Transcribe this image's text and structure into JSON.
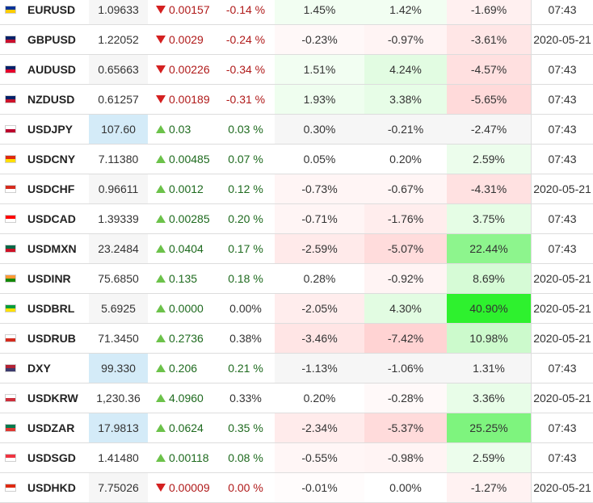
{
  "colors": {
    "down_text": "#b01a1a",
    "up_text": "#1e6a1e",
    "down_arrow": "#d42020",
    "up_arrow": "#6cc24a",
    "price_highlight": "#d4ebf8"
  },
  "rows": [
    {
      "flag": "eu-flag-icon",
      "flag_colors": [
        "#003399",
        "#ffcc00"
      ],
      "symbol": "EURUSD",
      "price": "1.09633",
      "price_hl": false,
      "dir": "down",
      "change": "0.00157",
      "change_pct": "-0.14 %",
      "pct_color": "down",
      "p1": "1.45%",
      "p1_bg": "#f2fef2",
      "p2": "1.42%",
      "p2_bg": "#f2fef2",
      "p3": "-1.69%",
      "p3_bg": "#fff0f0",
      "time": "07:43"
    },
    {
      "flag": "uk-flag-icon",
      "flag_colors": [
        "#012169",
        "#c8102e"
      ],
      "symbol": "GBPUSD",
      "price": "1.22052",
      "price_hl": false,
      "dir": "down",
      "change": "0.0029",
      "change_pct": "-0.24 %",
      "pct_color": "down",
      "p1": "-0.23%",
      "p1_bg": "#fff8f8",
      "p2": "-0.97%",
      "p2_bg": "#fff4f4",
      "p3": "-3.61%",
      "p3_bg": "#ffe6e6",
      "time": "2020-05-21"
    },
    {
      "flag": "au-flag-icon",
      "flag_colors": [
        "#012169",
        "#e4002b"
      ],
      "symbol": "AUDUSD",
      "price": "0.65663",
      "price_hl": false,
      "dir": "down",
      "change": "0.00226",
      "change_pct": "-0.34 %",
      "pct_color": "down",
      "p1": "1.51%",
      "p1_bg": "#f2fef2",
      "p2": "4.24%",
      "p2_bg": "#e2fce2",
      "p3": "-4.57%",
      "p3_bg": "#ffe0e0",
      "time": "07:43"
    },
    {
      "flag": "nz-flag-icon",
      "flag_colors": [
        "#012169",
        "#cc142b"
      ],
      "symbol": "NZDUSD",
      "price": "0.61257",
      "price_hl": false,
      "dir": "down",
      "change": "0.00189",
      "change_pct": "-0.31 %",
      "pct_color": "down",
      "p1": "1.93%",
      "p1_bg": "#effeef",
      "p2": "3.38%",
      "p2_bg": "#e7fde7",
      "p3": "-5.65%",
      "p3_bg": "#ffdada",
      "time": "07:43"
    },
    {
      "flag": "jp-flag-icon",
      "flag_colors": [
        "#ffffff",
        "#bc002d"
      ],
      "symbol": "USDJPY",
      "price": "107.60",
      "price_hl": true,
      "dir": "up",
      "change": "0.03",
      "change_pct": "0.03 %",
      "pct_color": "up",
      "p1": "0.30%",
      "p1_bg": "#f6f6f6",
      "p2": "-0.21%",
      "p2_bg": "#f6f6f6",
      "p3": "-2.47%",
      "p3_bg": "#f6f6f6",
      "time": "07:43"
    },
    {
      "flag": "cn-flag-icon",
      "flag_colors": [
        "#de2910",
        "#ffde00"
      ],
      "symbol": "USDCNY",
      "price": "7.11380",
      "price_hl": false,
      "dir": "up",
      "change": "0.00485",
      "change_pct": "0.07 %",
      "pct_color": "up",
      "p1": "0.05%",
      "p1_bg": "#ffffff",
      "p2": "0.20%",
      "p2_bg": "#ffffff",
      "p3": "2.59%",
      "p3_bg": "#ecfdec",
      "time": "07:43"
    },
    {
      "flag": "ch-flag-icon",
      "flag_colors": [
        "#d52b1e",
        "#ffffff"
      ],
      "symbol": "USDCHF",
      "price": "0.96611",
      "price_hl": false,
      "dir": "up",
      "change": "0.0012",
      "change_pct": "0.12 %",
      "pct_color": "up",
      "p1": "-0.73%",
      "p1_bg": "#fff5f5",
      "p2": "-0.67%",
      "p2_bg": "#fff5f5",
      "p3": "-4.31%",
      "p3_bg": "#ffe1e1",
      "time": "2020-05-21"
    },
    {
      "flag": "ca-flag-icon",
      "flag_colors": [
        "#ff0000",
        "#ffffff"
      ],
      "symbol": "USDCAD",
      "price": "1.39339",
      "price_hl": false,
      "dir": "up",
      "change": "0.00285",
      "change_pct": "0.20 %",
      "pct_color": "up",
      "p1": "-0.71%",
      "p1_bg": "#fff5f5",
      "p2": "-1.76%",
      "p2_bg": "#ffeded",
      "p3": "3.75%",
      "p3_bg": "#e5fde5",
      "time": "07:43"
    },
    {
      "flag": "mx-flag-icon",
      "flag_colors": [
        "#006847",
        "#ce1126"
      ],
      "symbol": "USDMXN",
      "price": "23.2484",
      "price_hl": false,
      "dir": "up",
      "change": "0.0404",
      "change_pct": "0.17 %",
      "pct_color": "up",
      "p1": "-2.59%",
      "p1_bg": "#ffeaea",
      "p2": "-5.07%",
      "p2_bg": "#ffdcdc",
      "p3": "22.44%",
      "p3_bg": "#8df58d",
      "time": "07:43"
    },
    {
      "flag": "in-flag-icon",
      "flag_colors": [
        "#ff9933",
        "#138808"
      ],
      "symbol": "USDINR",
      "price": "75.6850",
      "price_hl": false,
      "dir": "up",
      "change": "0.135",
      "change_pct": "0.18 %",
      "pct_color": "up",
      "p1": "0.28%",
      "p1_bg": "#ffffff",
      "p2": "-0.92%",
      "p2_bg": "#fff4f4",
      "p3": "8.69%",
      "p3_bg": "#d6fbd6",
      "time": "2020-05-21"
    },
    {
      "flag": "br-flag-icon",
      "flag_colors": [
        "#009c3b",
        "#ffdf00"
      ],
      "symbol": "USDBRL",
      "price": "5.6925",
      "price_hl": false,
      "dir": "up",
      "change": "0.0000",
      "change_pct": "0.00%",
      "pct_color": "neutral",
      "p1": "-2.05%",
      "p1_bg": "#ffeded",
      "p2": "4.30%",
      "p2_bg": "#e2fce2",
      "p3": "40.90%",
      "p3_bg": "#2ef12e",
      "time": "2020-05-21"
    },
    {
      "flag": "ru-flag-icon",
      "flag_colors": [
        "#ffffff",
        "#d52b1e"
      ],
      "symbol": "USDRUB",
      "price": "71.3450",
      "price_hl": false,
      "dir": "up",
      "change": "0.2736",
      "change_pct": "0.38%",
      "pct_color": "neutral",
      "p1": "-3.46%",
      "p1_bg": "#ffe5e5",
      "p2": "-7.42%",
      "p2_bg": "#ffd3d3",
      "p3": "10.98%",
      "p3_bg": "#ccfacc",
      "time": "2020-05-21"
    },
    {
      "flag": "us-flag-icon",
      "flag_colors": [
        "#b22234",
        "#3c3b6e"
      ],
      "symbol": "DXY",
      "price": "99.330",
      "price_hl": true,
      "dir": "up",
      "change": "0.206",
      "change_pct": "0.21 %",
      "pct_color": "up",
      "p1": "-1.13%",
      "p1_bg": "#f6f6f6",
      "p2": "-1.06%",
      "p2_bg": "#f6f6f6",
      "p3": "1.31%",
      "p3_bg": "#f6f6f6",
      "time": "07:43"
    },
    {
      "flag": "kr-flag-icon",
      "flag_colors": [
        "#ffffff",
        "#cd2e3a"
      ],
      "symbol": "USDKRW",
      "price": "1,230.36",
      "price_hl": false,
      "dir": "up",
      "change": "4.0960",
      "change_pct": "0.33%",
      "pct_color": "neutral",
      "p1": "0.20%",
      "p1_bg": "#ffffff",
      "p2": "-0.28%",
      "p2_bg": "#fff9f9",
      "p3": "3.36%",
      "p3_bg": "#e8fde8",
      "time": "2020-05-21"
    },
    {
      "flag": "za-flag-icon",
      "flag_colors": [
        "#007a4d",
        "#de3831"
      ],
      "symbol": "USDZAR",
      "price": "17.9813",
      "price_hl": true,
      "dir": "up",
      "change": "0.0624",
      "change_pct": "0.35 %",
      "pct_color": "up",
      "p1": "-2.34%",
      "p1_bg": "#ffebeb",
      "p2": "-5.37%",
      "p2_bg": "#ffdbdb",
      "p3": "25.25%",
      "p3_bg": "#7ef47e",
      "time": "07:43"
    },
    {
      "flag": "sg-flag-icon",
      "flag_colors": [
        "#ef3340",
        "#ffffff"
      ],
      "symbol": "USDSGD",
      "price": "1.41480",
      "price_hl": false,
      "dir": "up",
      "change": "0.00118",
      "change_pct": "0.08 %",
      "pct_color": "up",
      "p1": "-0.55%",
      "p1_bg": "#fff6f6",
      "p2": "-0.98%",
      "p2_bg": "#fff4f4",
      "p3": "2.59%",
      "p3_bg": "#ecfdec",
      "time": "07:43"
    },
    {
      "flag": "hk-flag-icon",
      "flag_colors": [
        "#de2910",
        "#ffffff"
      ],
      "symbol": "USDHKD",
      "price": "7.75026",
      "price_hl": false,
      "dir": "down",
      "change": "0.00009",
      "change_pct": "0.00 %",
      "pct_color": "down",
      "p1": "-0.01%",
      "p1_bg": "#fffcfc",
      "p2": "0.00%",
      "p2_bg": "#ffffff",
      "p3": "-1.27%",
      "p3_bg": "#fff2f2",
      "time": "2020-05-21"
    }
  ]
}
